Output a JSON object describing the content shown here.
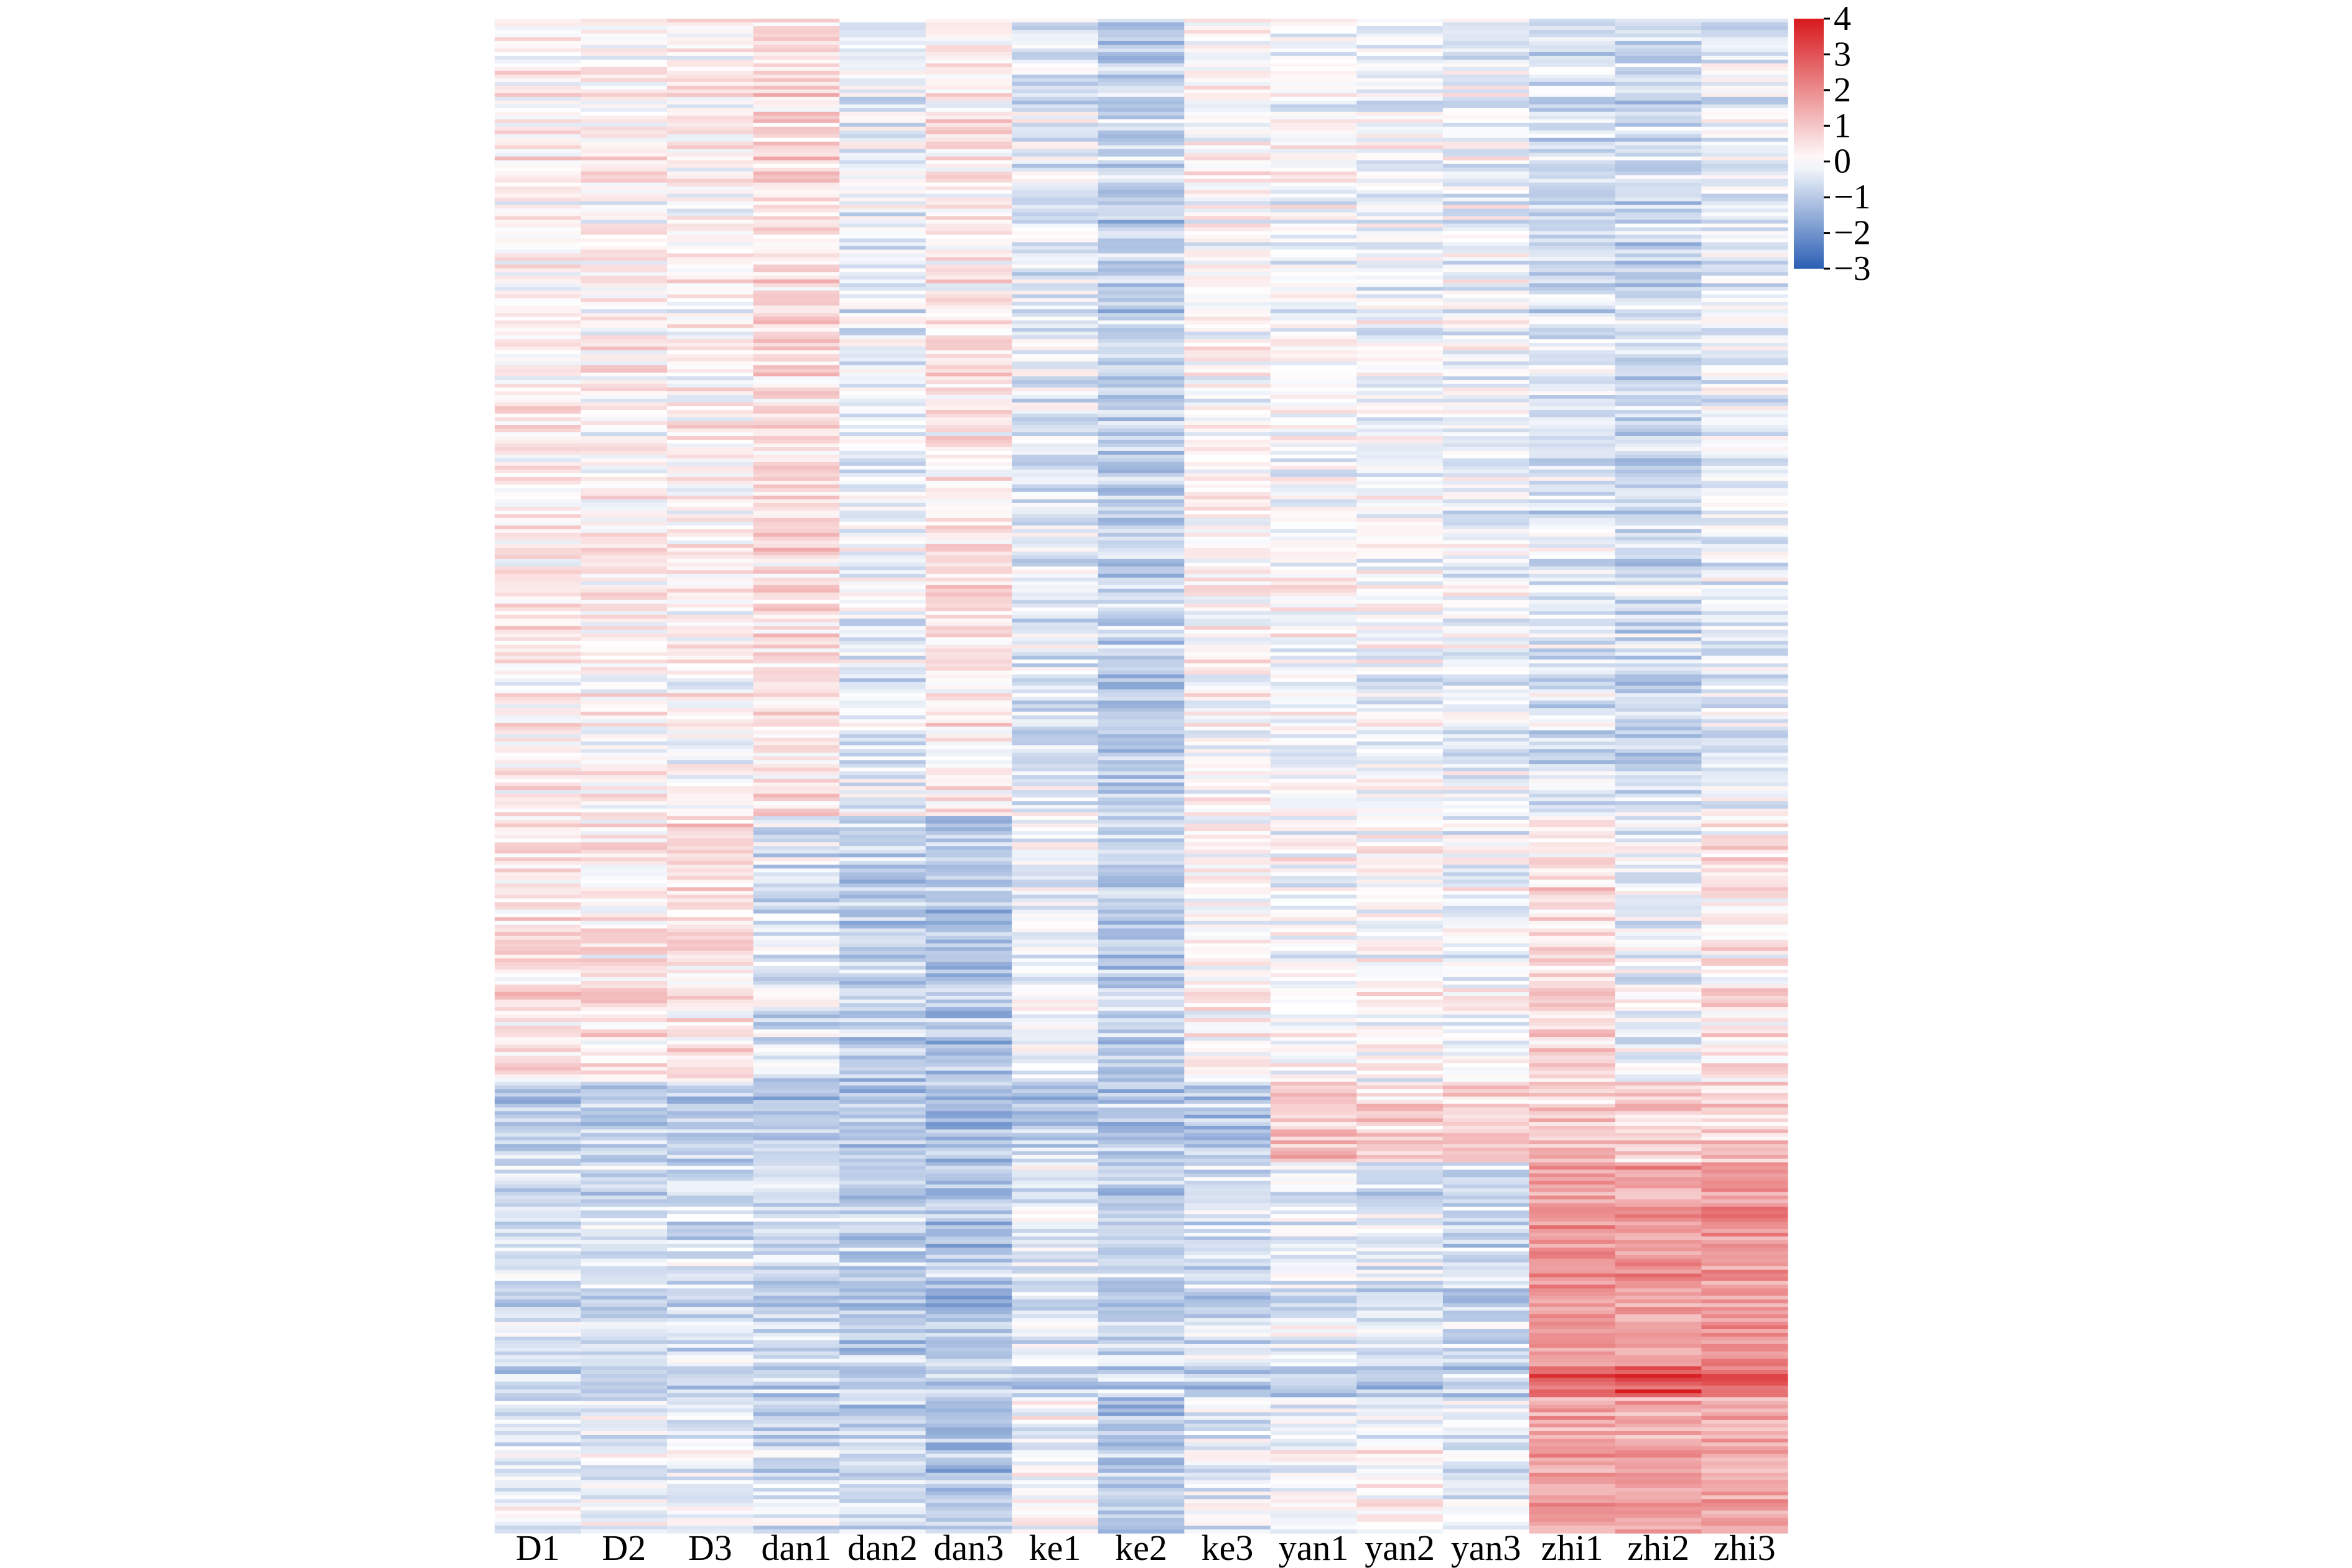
{
  "chart_data": {
    "type": "heatmap",
    "title": "",
    "xlabel": "",
    "ylabel": "",
    "columns": [
      "D1",
      "D2",
      "D3",
      "dan1",
      "dan2",
      "dan3",
      "ke1",
      "ke2",
      "ke3",
      "yan1",
      "yan2",
      "yan3",
      "zhi1",
      "zhi2",
      "zhi3"
    ],
    "row_labels_shown": false,
    "colorbar": {
      "ticks": [
        "4",
        "3",
        "2",
        "1",
        "0",
        "−1",
        "−2",
        "−3"
      ],
      "min": -3,
      "max": 4,
      "colors": {
        "low": "#2b5fb4",
        "mid": "#ffffff",
        "high": "#d7191c"
      }
    },
    "row_clusters": [
      {
        "rows": 1290,
        "means": [
          0.3,
          0.2,
          0.2,
          0.6,
          -0.3,
          0.4,
          -0.4,
          -0.9,
          0.1,
          0.0,
          -0.1,
          -0.2,
          -0.5,
          -0.7,
          -0.3
        ]
      },
      {
        "rows": 430,
        "means": [
          0.5,
          0.4,
          0.5,
          -0.5,
          -0.9,
          -1.1,
          -0.2,
          -0.9,
          0.2,
          0.0,
          0.1,
          -0.1,
          0.6,
          -0.2,
          0.4
        ]
      },
      {
        "rows": 130,
        "means": [
          -0.9,
          -0.9,
          -0.9,
          -1.0,
          -1.1,
          -1.1,
          -0.9,
          -1.0,
          -0.9,
          1.0,
          0.8,
          0.9,
          0.9,
          0.8,
          0.7
        ]
      },
      {
        "rows": 330,
        "means": [
          -0.6,
          -0.6,
          -0.6,
          -0.7,
          -1.0,
          -1.1,
          -0.5,
          -0.9,
          -0.6,
          -0.4,
          -0.5,
          -0.7,
          1.8,
          1.7,
          1.9
        ]
      },
      {
        "rows": 50,
        "means": [
          -1.0,
          -1.0,
          -1.0,
          -1.0,
          -1.0,
          -1.0,
          -1.0,
          -1.0,
          -1.0,
          -1.0,
          -1.0,
          -1.0,
          2.7,
          3.0,
          2.5
        ]
      },
      {
        "rows": 220,
        "means": [
          -0.3,
          -0.3,
          -0.3,
          -0.6,
          -0.8,
          -1.2,
          0.0,
          -1.0,
          -0.3,
          0.0,
          0.1,
          -0.3,
          1.5,
          1.6,
          1.5
        ]
      }
    ]
  }
}
